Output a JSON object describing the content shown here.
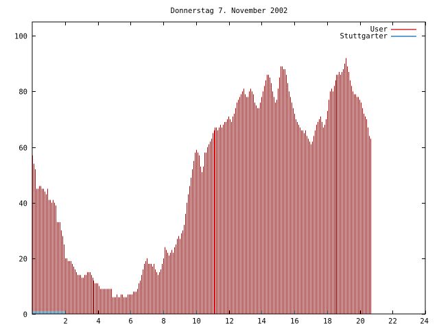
{
  "chart_data": {
    "type": "bar",
    "title": "Donnerstag 7. November 2002",
    "xlabel": "",
    "ylabel": "",
    "xlim": [
      0,
      24
    ],
    "ylim": [
      0,
      105
    ],
    "x_ticks": [
      2,
      4,
      6,
      8,
      10,
      12,
      14,
      16,
      18,
      20,
      22,
      24
    ],
    "y_ticks": [
      0,
      20,
      40,
      60,
      80,
      100
    ],
    "grid": false,
    "legend_position": "top-right",
    "bar_interval_hours": 0.0833,
    "series": [
      {
        "name": "User",
        "color": "#cc0000",
        "values": [
          57,
          54,
          52,
          45,
          45,
          46,
          46,
          45,
          45,
          44,
          43,
          45,
          41,
          41,
          40,
          41,
          40,
          39,
          33,
          33,
          33,
          30,
          28,
          25,
          20,
          20,
          19,
          19,
          19,
          18,
          17,
          16,
          15,
          14,
          14,
          14,
          13,
          13,
          14,
          14,
          15,
          15,
          15,
          14,
          13,
          12,
          11,
          11,
          11,
          10,
          9,
          9,
          9,
          9,
          9,
          9,
          9,
          9,
          9,
          6,
          6,
          6,
          7,
          6,
          6,
          7,
          7,
          6,
          6,
          6,
          7,
          7,
          7,
          7,
          8,
          8,
          8,
          9,
          11,
          12,
          14,
          16,
          18,
          19,
          20,
          18,
          18,
          18,
          17,
          18,
          16,
          15,
          14,
          15,
          16,
          18,
          20,
          24,
          23,
          22,
          21,
          22,
          23,
          22,
          24,
          25,
          27,
          28,
          27,
          29,
          30,
          32,
          36,
          40,
          43,
          46,
          49,
          52,
          55,
          58,
          59,
          58,
          57,
          53,
          51,
          53,
          58,
          58,
          60,
          61,
          62,
          63,
          65,
          66,
          67,
          67,
          66,
          67,
          68,
          67,
          68,
          69,
          69,
          70,
          71,
          70,
          69,
          71,
          72,
          74,
          76,
          77,
          78,
          79,
          80,
          81,
          79,
          78,
          78,
          80,
          81,
          80,
          79,
          76,
          75,
          74,
          74,
          76,
          78,
          80,
          82,
          84,
          86,
          86,
          85,
          83,
          80,
          78,
          76,
          77,
          81,
          85,
          89,
          89,
          88,
          88,
          86,
          83,
          80,
          78,
          76,
          74,
          72,
          70,
          69,
          68,
          67,
          66,
          66,
          65,
          66,
          64,
          63,
          62,
          61,
          62,
          64,
          66,
          68,
          69,
          70,
          71,
          69,
          67,
          68,
          70,
          73,
          77,
          80,
          81,
          80,
          82,
          84,
          86,
          86,
          87,
          86,
          87,
          88,
          90,
          92,
          89,
          87,
          84,
          82,
          80,
          79,
          79,
          78,
          78,
          77,
          76,
          74,
          72,
          71,
          70,
          67,
          64,
          63
        ]
      },
      {
        "name": "Stuttgarter",
        "color": "#0066b3",
        "values": [
          1,
          1,
          1,
          1,
          1,
          1,
          1,
          1,
          1,
          1,
          1,
          1,
          1,
          1,
          1,
          1,
          1,
          1,
          1,
          1,
          1,
          1,
          1,
          1,
          1,
          0,
          0,
          0,
          0,
          0,
          0,
          0,
          0,
          0,
          0,
          0,
          0,
          0,
          0,
          0,
          0,
          0,
          0,
          0,
          0,
          0,
          0,
          0,
          0,
          0,
          0,
          0,
          0,
          0,
          0,
          0,
          0,
          0,
          0,
          0,
          0,
          0,
          0,
          0,
          0,
          0,
          0,
          0,
          0,
          0,
          0,
          0,
          0,
          0,
          0,
          0,
          0,
          0,
          0,
          0,
          0,
          0,
          0,
          0,
          0,
          0,
          0,
          0,
          0,
          0,
          0,
          0,
          0,
          0,
          0,
          0,
          0,
          0,
          0,
          0,
          0,
          0,
          0,
          0,
          0,
          0,
          0,
          0,
          0,
          0,
          0,
          0,
          0,
          0,
          0,
          0,
          0,
          0,
          0,
          0,
          0,
          0,
          0,
          0,
          0,
          0,
          0,
          0,
          0,
          0,
          0,
          0,
          0,
          0,
          0,
          0,
          0,
          0,
          0,
          0,
          0,
          0,
          0,
          0,
          0,
          0,
          0,
          0,
          0,
          0,
          0,
          0,
          0,
          0,
          0,
          0,
          0,
          0,
          0,
          0,
          0,
          0,
          0,
          0,
          0,
          0,
          0,
          0,
          0,
          0,
          0,
          0,
          0,
          0,
          0,
          0,
          0,
          0,
          0,
          0,
          0,
          0,
          0,
          0,
          0,
          0,
          0,
          0,
          0,
          0,
          0,
          0,
          0,
          0,
          0,
          0,
          0,
          0,
          0,
          0,
          0,
          0,
          0,
          0,
          0,
          0,
          0,
          0,
          0,
          0,
          0,
          0,
          0,
          0,
          0,
          0,
          0,
          0,
          0,
          0,
          0,
          0,
          0,
          0,
          0,
          0,
          0,
          0,
          0,
          0,
          0,
          0,
          0,
          0,
          0,
          0,
          0,
          0,
          0,
          0,
          0,
          0,
          0,
          0,
          0,
          0,
          0,
          0,
          0
        ]
      }
    ]
  }
}
